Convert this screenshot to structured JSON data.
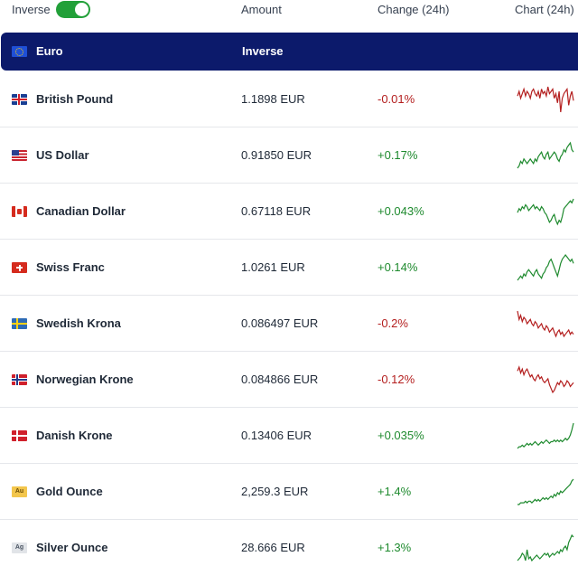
{
  "header": {
    "toggle_label": "Inverse",
    "toggle_on": true,
    "col_amount": "Amount",
    "col_change": "Change (24h)",
    "col_chart": "Chart (24h)"
  },
  "base": {
    "name": "Euro",
    "mode": "Inverse"
  },
  "colors": {
    "header_bg": "#0c1a6b",
    "toggle": "#22a039",
    "up": "#1e8a2e",
    "down": "#b41f1f"
  },
  "rows": [
    {
      "name": "British Pound",
      "amount": "1.1898 EUR",
      "change": "-0.01%",
      "dir": "down",
      "icon": "gb-flag-icon",
      "spark": [
        5,
        3,
        6,
        4,
        2,
        5,
        3,
        4,
        6,
        3,
        2,
        4,
        5,
        3,
        6,
        2,
        4,
        3,
        5,
        1,
        4,
        3,
        2,
        6,
        4,
        8,
        3,
        12,
        6,
        4,
        3,
        2,
        9,
        5,
        3,
        7
      ]
    },
    {
      "name": "US Dollar",
      "amount": "0.91850 EUR",
      "change": "+0.17%",
      "dir": "up",
      "icon": "us-flag-icon",
      "spark": [
        12,
        11,
        9,
        10,
        8,
        9,
        10,
        9,
        8,
        9,
        10,
        8,
        9,
        7,
        6,
        5,
        7,
        8,
        6,
        5,
        8,
        7,
        6,
        5,
        6,
        8,
        9,
        7,
        6,
        4,
        5,
        3,
        2,
        1,
        4,
        5
      ]
    },
    {
      "name": "Canadian Dollar",
      "amount": "0.67118 EUR",
      "change": "+0.043%",
      "dir": "up",
      "icon": "ca-flag-icon",
      "spark": [
        8,
        6,
        7,
        5,
        6,
        4,
        5,
        7,
        6,
        5,
        4,
        6,
        5,
        6,
        7,
        5,
        6,
        8,
        9,
        11,
        13,
        12,
        10,
        9,
        12,
        14,
        12,
        13,
        10,
        6,
        5,
        4,
        3,
        2,
        3,
        1
      ]
    },
    {
      "name": "Swiss Franc",
      "amount": "1.0261 EUR",
      "change": "+0.14%",
      "dir": "up",
      "icon": "ch-flag-icon",
      "spark": [
        14,
        13,
        12,
        13,
        11,
        12,
        10,
        9,
        10,
        11,
        12,
        10,
        9,
        11,
        12,
        13,
        11,
        10,
        8,
        7,
        5,
        4,
        6,
        8,
        10,
        12,
        9,
        6,
        4,
        3,
        2,
        3,
        4,
        5,
        4,
        6
      ]
    },
    {
      "name": "Swedish Krona",
      "amount": "0.086497 EUR",
      "change": "-0.2%",
      "dir": "down",
      "icon": "se-flag-icon",
      "spark": [
        2,
        6,
        4,
        7,
        5,
        6,
        8,
        7,
        6,
        8,
        9,
        7,
        8,
        10,
        9,
        8,
        10,
        11,
        9,
        10,
        12,
        11,
        10,
        12,
        14,
        12,
        11,
        13,
        12,
        14,
        13,
        12,
        11,
        13,
        12,
        13
      ]
    },
    {
      "name": "Norwegian Krone",
      "amount": "0.084866 EUR",
      "change": "-0.12%",
      "dir": "down",
      "icon": "no-flag-icon",
      "spark": [
        4,
        2,
        5,
        3,
        6,
        4,
        3,
        5,
        7,
        6,
        8,
        9,
        7,
        6,
        8,
        7,
        9,
        10,
        9,
        8,
        11,
        13,
        15,
        14,
        12,
        10,
        11,
        9,
        10,
        12,
        11,
        9,
        10,
        12,
        11,
        10
      ]
    },
    {
      "name": "Danish Krone",
      "amount": "0.13406 EUR",
      "change": "+0.035%",
      "dir": "up",
      "icon": "dk-flag-icon",
      "spark": [
        16,
        15,
        15,
        14,
        15,
        14,
        13,
        14,
        13,
        14,
        13,
        12,
        13,
        14,
        13,
        12,
        13,
        12,
        11,
        12,
        13,
        12,
        12,
        11,
        12,
        11,
        12,
        11,
        12,
        11,
        10,
        11,
        10,
        8,
        5,
        1
      ]
    },
    {
      "name": "Gold Ounce",
      "amount": "2,259.3 EUR",
      "change": "+1.4%",
      "dir": "up",
      "icon": "gold-icon",
      "badge": "Au",
      "spark": [
        16,
        16,
        15,
        15,
        15,
        14,
        15,
        14,
        14,
        15,
        14,
        13,
        14,
        13,
        14,
        13,
        12,
        13,
        12,
        13,
        12,
        11,
        12,
        10,
        11,
        9,
        10,
        8,
        9,
        8,
        7,
        6,
        5,
        4,
        2,
        1
      ]
    },
    {
      "name": "Silver Ounce",
      "amount": "28.666 EUR",
      "change": "+1.3%",
      "dir": "up",
      "icon": "silver-icon",
      "badge": "Ag",
      "spark": [
        16,
        15,
        14,
        12,
        13,
        16,
        10,
        15,
        14,
        16,
        15,
        14,
        13,
        14,
        15,
        14,
        13,
        12,
        13,
        12,
        14,
        13,
        12,
        13,
        12,
        11,
        12,
        10,
        11,
        9,
        8,
        10,
        6,
        4,
        2,
        3
      ]
    }
  ]
}
